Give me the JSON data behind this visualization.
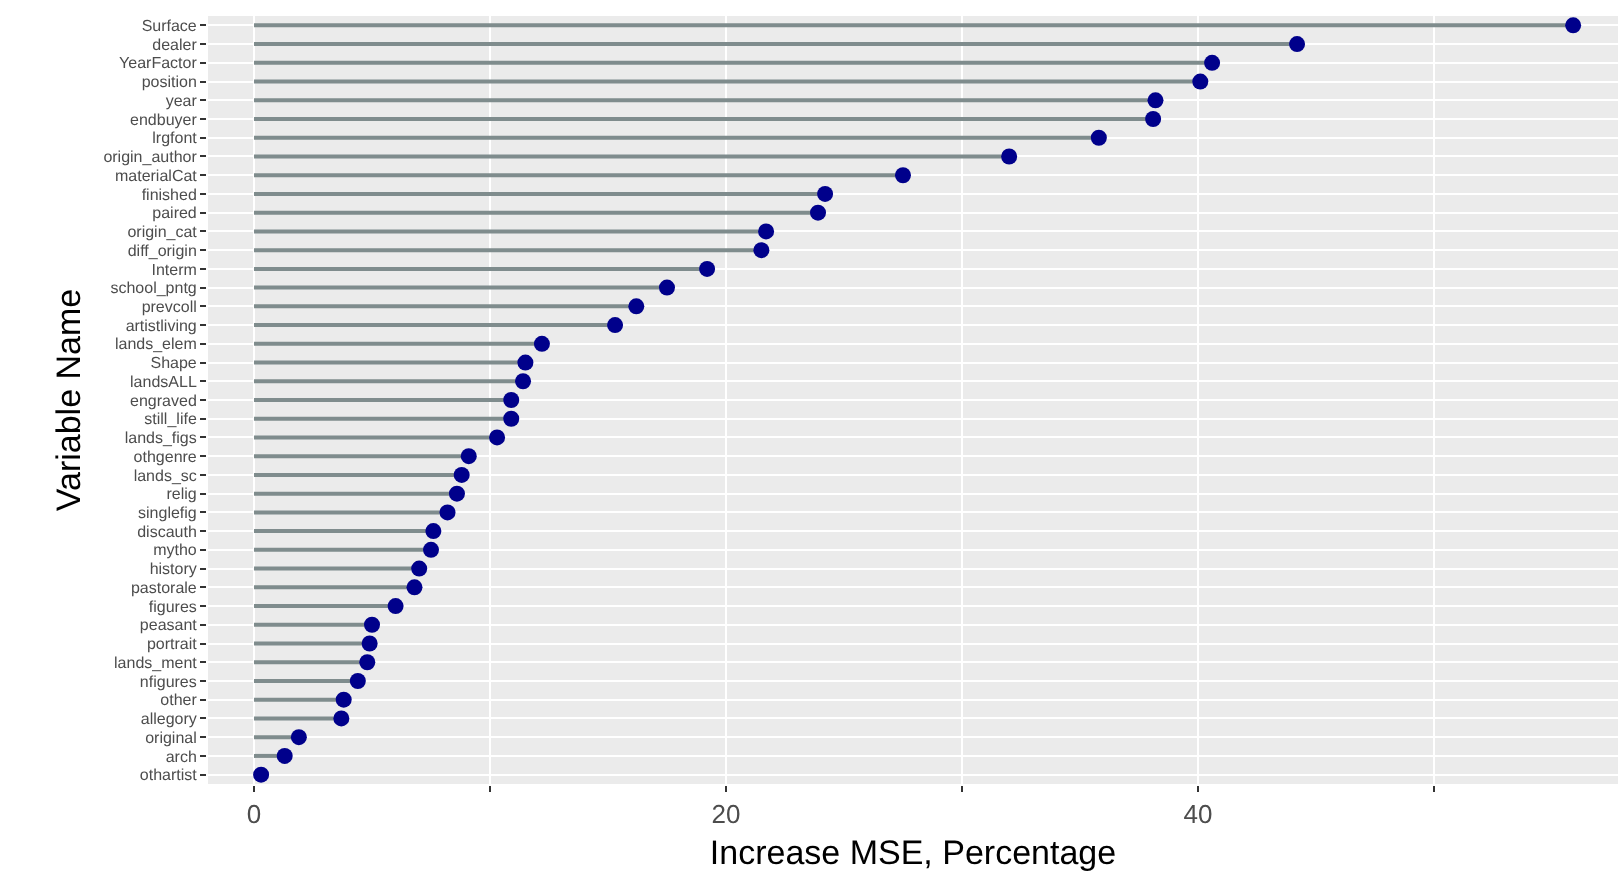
{
  "chart_data": {
    "type": "lollipop",
    "orientation": "horizontal",
    "xlabel": "Increase MSE, Percentage",
    "ylabel": "Variable Name",
    "categories": [
      "Surface",
      "dealer",
      "YearFactor",
      "position",
      "year",
      "endbuyer",
      "lrgfont",
      "origin_author",
      "materialCat",
      "finished",
      "paired",
      "origin_cat",
      "diff_origin",
      "Interm",
      "school_pntg",
      "prevcoll",
      "artistliving",
      "lands_elem",
      "Shape",
      "landsALL",
      "engraved",
      "still_life",
      "lands_figs",
      "othgenre",
      "lands_sc",
      "relig",
      "singlefig",
      "discauth",
      "mytho",
      "history",
      "pastorale",
      "figures",
      "peasant",
      "portrait",
      "lands_ment",
      "nfigures",
      "other",
      "allegory",
      "original",
      "arch",
      "othartist"
    ],
    "series": [
      {
        "color": "#00008b",
        "values": [
          55.9,
          44.2,
          40.6,
          40.1,
          38.2,
          38.1,
          35.8,
          32.0,
          27.5,
          24.2,
          23.9,
          21.7,
          21.5,
          19.2,
          17.5,
          16.2,
          15.3,
          12.2,
          11.5,
          11.4,
          10.9,
          10.9,
          10.3,
          9.1,
          8.8,
          8.6,
          8.2,
          7.6,
          7.5,
          7.0,
          6.8,
          6.0,
          5.0,
          4.9,
          4.8,
          4.4,
          3.8,
          3.7,
          1.9,
          1.3,
          0.3
        ]
      }
    ],
    "xlim": [
      -1.95,
      57.8
    ],
    "xticks": [
      0,
      {
        "value": 10,
        "label": null
      },
      20,
      {
        "value": 30,
        "label": null
      },
      40,
      {
        "value": 50,
        "label": null
      }
    ],
    "grid": true,
    "marker": "circle"
  }
}
